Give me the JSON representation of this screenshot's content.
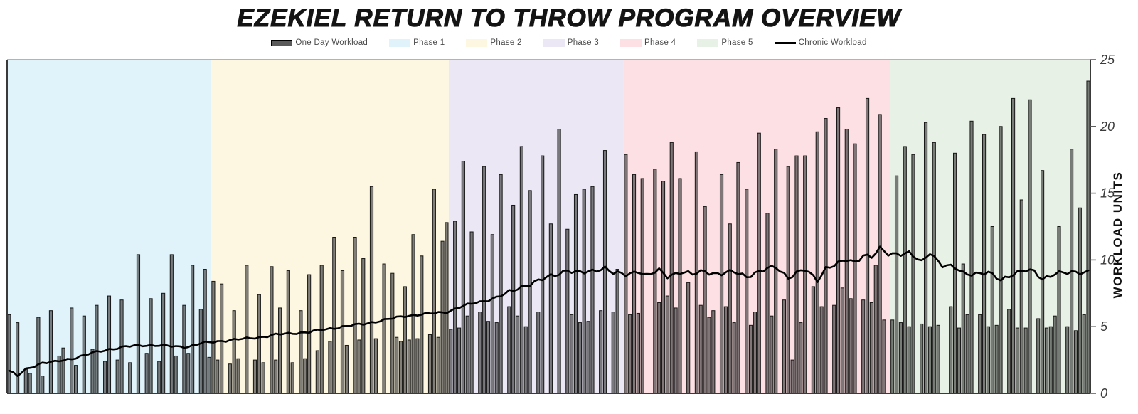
{
  "title": "EZEKIEL RETURN TO THROW PROGRAM OVERVIEW",
  "legend": [
    {
      "label": "One Day Workload",
      "type": "bar",
      "color": "#5a5a5a"
    },
    {
      "label": "Phase 1",
      "type": "fill",
      "color": "#e0f2fa"
    },
    {
      "label": "Phase 2",
      "type": "fill",
      "color": "#fdf7e2"
    },
    {
      "label": "Phase 3",
      "type": "fill",
      "color": "#ebe7f4"
    },
    {
      "label": "Phase 4",
      "type": "fill",
      "color": "#fde0e4"
    },
    {
      "label": "Phase 5",
      "type": "fill",
      "color": "#e8f1e5"
    },
    {
      "label": "Chronic Workload",
      "type": "line",
      "color": "#000000"
    }
  ],
  "chart_data": {
    "type": "bar",
    "title": "EZEKIEL RETURN TO THROW PROGRAM OVERVIEW",
    "xlabel": "",
    "ylabel": "WORKLOAD UNITS",
    "yticks": [
      0,
      5,
      10,
      15,
      20,
      25
    ],
    "ylim": [
      0,
      25
    ],
    "grid": false,
    "legend_position": "top",
    "n_days": 260,
    "phases": [
      {
        "label": "Phase 1",
        "color": "#e0f2fa",
        "day_span": [
          0,
          48
        ]
      },
      {
        "label": "Phase 2",
        "color": "#fdf7e2",
        "day_span": [
          49,
          105
        ]
      },
      {
        "label": "Phase 3",
        "color": "#ebe7f4",
        "day_span": [
          106,
          147
        ]
      },
      {
        "label": "Phase 4",
        "color": "#fde0e4",
        "day_span": [
          148,
          211
        ]
      },
      {
        "label": "Phase 5",
        "color": "#e8f1e5",
        "day_span": [
          212,
          259
        ]
      }
    ],
    "series": [
      {
        "name": "One Day Workload",
        "type": "bar",
        "values": [
          5.9,
          0,
          5.3,
          0,
          1.8,
          1.5,
          0,
          5.7,
          1.3,
          0,
          6.2,
          0,
          2.8,
          3.4,
          0,
          6.4,
          2.1,
          0,
          5.8,
          0,
          3.3,
          6.6,
          0,
          2.4,
          7.3,
          0,
          2.5,
          7.0,
          0,
          2.3,
          0,
          10.4,
          0,
          3.0,
          7.1,
          0,
          2.4,
          7.5,
          0,
          10.4,
          2.8,
          0,
          6.6,
          3.0,
          9.6,
          0,
          6.3,
          9.3,
          2.7,
          8.4,
          2.5,
          8.2,
          0,
          2.2,
          6.2,
          2.6,
          0,
          9.6,
          0,
          2.5,
          7.4,
          2.3,
          0,
          9.5,
          2.5,
          6.4,
          0,
          9.2,
          2.3,
          0,
          6.2,
          2.6,
          8.9,
          0,
          3.2,
          9.6,
          0,
          3.9,
          11.7,
          0,
          9.2,
          3.6,
          0,
          11.7,
          4.0,
          10.1,
          0,
          15.5,
          4.1,
          0,
          9.7,
          0,
          9.0,
          4.2,
          3.9,
          8.0,
          4.0,
          11.9,
          4.1,
          10.3,
          0,
          4.4,
          15.3,
          4.2,
          11.4,
          12.8,
          4.8,
          12.9,
          4.9,
          17.4,
          5.8,
          12.1,
          0,
          6.1,
          17.0,
          5.4,
          11.9,
          5.3,
          16.4,
          0,
          6.5,
          14.1,
          5.8,
          18.5,
          5.0,
          15.2,
          0,
          6.1,
          17.8,
          0,
          12.7,
          0,
          19.8,
          0,
          12.3,
          5.9,
          14.9,
          5.3,
          15.3,
          5.4,
          15.5,
          0,
          6.2,
          18.2,
          0,
          6.1,
          9.3,
          0,
          17.9,
          5.9,
          16.4,
          6.0,
          16.1,
          0,
          0,
          16.8,
          6.8,
          15.9,
          7.3,
          18.8,
          6.4,
          16.1,
          0,
          8.3,
          0,
          18.1,
          6.6,
          14.0,
          5.7,
          6.2,
          0,
          16.4,
          6.5,
          12.7,
          5.3,
          17.3,
          0,
          15.3,
          5.1,
          6.1,
          19.5,
          0,
          13.5,
          5.8,
          18.3,
          0,
          7.0,
          17.0,
          2.5,
          17.8,
          5.3,
          17.8,
          0,
          8.0,
          19.6,
          6.5,
          20.6,
          0,
          6.6,
          21.4,
          7.9,
          19.8,
          7.1,
          18.7,
          0,
          7.0,
          22.1,
          6.8,
          9.6,
          20.9,
          5.5,
          0,
          5.5,
          16.3,
          5.3,
          18.5,
          5.0,
          17.9,
          0,
          5.2,
          20.3,
          5.0,
          18.8,
          5.1,
          0,
          0,
          6.5,
          18.0,
          4.9,
          9.7,
          5.9,
          20.4,
          0,
          5.9,
          19.4,
          5.0,
          12.5,
          5.1,
          20.0,
          0,
          6.3,
          22.1,
          4.9,
          14.5,
          4.9,
          22.0,
          0,
          5.6,
          16.7,
          4.9,
          5.0,
          5.8,
          12.5,
          0,
          5.0,
          18.3,
          4.7,
          13.9,
          5.9,
          23.4
        ]
      },
      {
        "name": "Chronic Workload",
        "type": "line",
        "anchors": [
          [
            0,
            1.7
          ],
          [
            2,
            1.3
          ],
          [
            4,
            1.8
          ],
          [
            8,
            2.3
          ],
          [
            11,
            2.35
          ],
          [
            15,
            2.6
          ],
          [
            19,
            2.95
          ],
          [
            24,
            3.3
          ],
          [
            28,
            3.5
          ],
          [
            32,
            3.6
          ],
          [
            36,
            3.6
          ],
          [
            40,
            3.5
          ],
          [
            43,
            3.5
          ],
          [
            46,
            3.75
          ],
          [
            49,
            3.85
          ],
          [
            53,
            4.0
          ],
          [
            57,
            4.1
          ],
          [
            60,
            4.2
          ],
          [
            64,
            4.4
          ],
          [
            68,
            4.5
          ],
          [
            72,
            4.6
          ],
          [
            76,
            4.8
          ],
          [
            80,
            5.0
          ],
          [
            85,
            5.2
          ],
          [
            90,
            5.5
          ],
          [
            95,
            5.8
          ],
          [
            100,
            5.95
          ],
          [
            105,
            6.1
          ],
          [
            109,
            6.55
          ],
          [
            112,
            6.8
          ],
          [
            115,
            7.0
          ],
          [
            119,
            7.4
          ],
          [
            122,
            7.9
          ],
          [
            127,
            8.4
          ],
          [
            130,
            8.8
          ],
          [
            134,
            9.25
          ],
          [
            136,
            9.0
          ],
          [
            139,
            9.1
          ],
          [
            141,
            9.3
          ],
          [
            143,
            9.4
          ],
          [
            145,
            9.0
          ],
          [
            148,
            8.9
          ],
          [
            151,
            9.2
          ],
          [
            153,
            8.8
          ],
          [
            156,
            9.2
          ],
          [
            158,
            8.8
          ],
          [
            161,
            9.1
          ],
          [
            164,
            8.9
          ],
          [
            167,
            9.2
          ],
          [
            169,
            9.0
          ],
          [
            171,
            8.95
          ],
          [
            174,
            9.1
          ],
          [
            177,
            8.8
          ],
          [
            180,
            9.1
          ],
          [
            184,
            9.5
          ],
          [
            187,
            8.7
          ],
          [
            189,
            9.0
          ],
          [
            191,
            9.25
          ],
          [
            194,
            8.5
          ],
          [
            196,
            9.4
          ],
          [
            199,
            9.7
          ],
          [
            201,
            10.0
          ],
          [
            203,
            9.85
          ],
          [
            205,
            10.4
          ],
          [
            207,
            10.2
          ],
          [
            209,
            10.8
          ],
          [
            211,
            10.45
          ],
          [
            213,
            10.5
          ],
          [
            216,
            10.5
          ],
          [
            219,
            9.8
          ],
          [
            221,
            10.6
          ],
          [
            224,
            9.6
          ],
          [
            227,
            9.4
          ],
          [
            229,
            9.0
          ],
          [
            232,
            9.0
          ],
          [
            235,
            9.0
          ],
          [
            238,
            8.5
          ],
          [
            241,
            9.0
          ],
          [
            244,
            9.2
          ],
          [
            246,
            9.1
          ],
          [
            248,
            8.6
          ],
          [
            251,
            9.0
          ],
          [
            254,
            9.0
          ],
          [
            257,
            9.1
          ],
          [
            259,
            9.15
          ]
        ]
      }
    ]
  },
  "colors": {
    "bar_fill": "rgba(52,52,52,0.62)",
    "bar_stroke": "rgba(15,15,15,0.95)",
    "chronic_line": "#000000",
    "spine": "#3a3a3a",
    "top_spine": "#9a9a9a",
    "tick": "#555555"
  }
}
